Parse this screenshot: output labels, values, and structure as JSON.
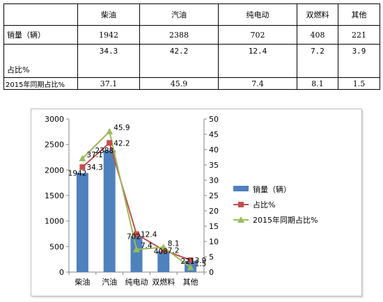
{
  "table": {
    "headers": [
      "",
      "柴油",
      "汽油",
      "纯电动",
      "双燃料",
      "其他"
    ],
    "rows": [
      {
        "label": "销量（辆）",
        "values": [
          "1942",
          "2388",
          "702",
          "408",
          "221"
        ]
      },
      {
        "label": "占比%",
        "values": [
          "34.3",
          "42.2",
          "12.4",
          "7.2",
          "3.9"
        ]
      },
      {
        "label": "2015年同期占比%",
        "values": [
          "37.1",
          "45.9",
          "7.4",
          "8.1",
          "1.5"
        ]
      }
    ]
  },
  "colors": {
    "sales": "#4f81bd",
    "share": "#c0504d",
    "share2015": "#9bbb59"
  },
  "chart_data": {
    "type": "bar",
    "categories": [
      "柴油",
      "汽油",
      "纯电动",
      "双燃料",
      "其他"
    ],
    "series": [
      {
        "name": "销量（辆）",
        "type": "bar",
        "axis": "left",
        "values": [
          1942,
          2388,
          702,
          408,
          221
        ]
      },
      {
        "name": "占比%",
        "type": "line",
        "axis": "right",
        "values": [
          34.3,
          42.2,
          12.4,
          7.2,
          3.9
        ]
      },
      {
        "name": "2015年同期占比%",
        "type": "line",
        "axis": "right",
        "values": [
          37.1,
          45.9,
          7.4,
          8.1,
          1.5
        ]
      }
    ],
    "y_left": {
      "lim": [
        0,
        3000
      ],
      "ticks": [
        "0",
        "500",
        "1000",
        "1500",
        "2000",
        "2500",
        "3000"
      ]
    },
    "y_right": {
      "lim": [
        0,
        50
      ],
      "ticks": [
        "0",
        "5",
        "10",
        "15",
        "20",
        "25",
        "30",
        "35",
        "40",
        "45",
        "50"
      ]
    },
    "bar_labels": [
      "1942",
      "2388",
      "702",
      "408",
      "221"
    ],
    "share_labels": [
      "34.3",
      "42.2",
      "12.4",
      "7.2",
      "3.9"
    ],
    "share2015_labels": [
      "37.1",
      "45.9",
      "7.4",
      "8.1",
      "1.5"
    ],
    "legend_position": "right",
    "grid": false
  }
}
